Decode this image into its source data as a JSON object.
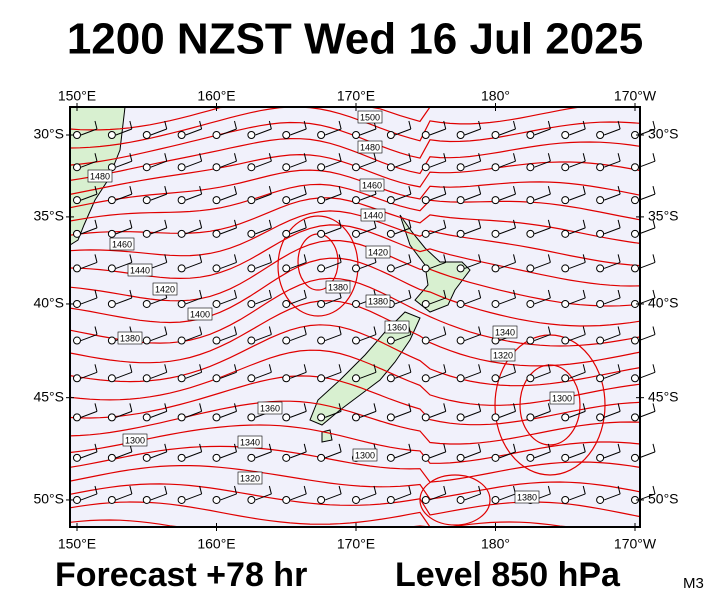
{
  "header": {
    "title": "1200 NZST Wed 16 Jul 2025"
  },
  "map": {
    "lon_ticks": [
      {
        "value": 150,
        "label": "150°E"
      },
      {
        "value": 160,
        "label": "160°E"
      },
      {
        "value": 170,
        "label": "170°E"
      },
      {
        "value": 180,
        "label": "180°"
      },
      {
        "value": 190,
        "label": "170°W"
      }
    ],
    "lat_ticks": [
      {
        "value": -30,
        "label": "30°S"
      },
      {
        "value": -35,
        "label": "35°S"
      },
      {
        "value": -40,
        "label": "40°S"
      },
      {
        "value": -45,
        "label": "45°S"
      },
      {
        "value": -50,
        "label": "50°S"
      }
    ],
    "contour_labels": [
      1500,
      1480,
      1460,
      1440,
      1420,
      1380,
      1380,
      1360,
      1340,
      1320,
      1300,
      1360,
      1340,
      1320,
      1300,
      1380,
      1480,
      1460,
      1440,
      1420,
      1400,
      1380,
      1300
    ]
  },
  "footer": {
    "forecast": "Forecast +78 hr",
    "level": "Level 850 hPa",
    "code": "M3"
  }
}
